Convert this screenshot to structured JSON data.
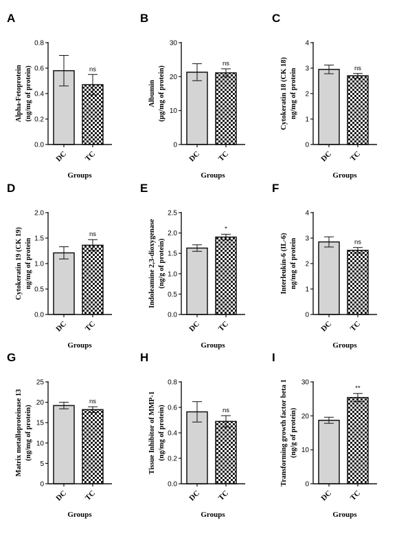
{
  "chart_data": [
    {
      "letter": "A",
      "type": "bar",
      "categories": [
        "DC",
        "TC"
      ],
      "ylabel": [
        "Alpha-Fetoprotein",
        "(ng/mg of protein)"
      ],
      "xlabel": "Groups",
      "ylim": [
        0,
        0.8
      ],
      "yticks": [
        "0.0",
        "0.2",
        "0.4",
        "0.6",
        "0.8"
      ],
      "values": [
        0.58,
        0.47
      ],
      "errors": [
        0.12,
        0.08
      ],
      "annotations": [
        "",
        "ns"
      ]
    },
    {
      "letter": "B",
      "type": "bar",
      "categories": [
        "DC",
        "TC"
      ],
      "ylabel": [
        "Albumin",
        "(µg/mg of protein)"
      ],
      "xlabel": "Groups",
      "ylim": [
        0,
        30
      ],
      "yticks": [
        "0",
        "10",
        "20",
        "30"
      ],
      "values": [
        21.3,
        21.1
      ],
      "errors": [
        2.5,
        1.2
      ],
      "annotations": [
        "",
        "ns"
      ]
    },
    {
      "letter": "C",
      "type": "bar",
      "categories": [
        "DC",
        "TC"
      ],
      "ylabel": [
        "Cytokeratin 18 (CK 18)",
        "ng/mg of protein"
      ],
      "xlabel": "Groups",
      "ylim": [
        0,
        4
      ],
      "yticks": [
        "0",
        "1",
        "2",
        "3",
        "4"
      ],
      "values": [
        2.95,
        2.7
      ],
      "errors": [
        0.17,
        0.09
      ],
      "annotations": [
        "",
        "ns"
      ]
    },
    {
      "letter": "D",
      "type": "bar",
      "categories": [
        "DC",
        "TC"
      ],
      "ylabel": [
        "Cytokeratin 19 (CK 19)",
        "ng/mg of protein"
      ],
      "xlabel": "Groups",
      "ylim": [
        0,
        2.0
      ],
      "yticks": [
        "0.0",
        "0.5",
        "1.0",
        "1.5",
        "2.0"
      ],
      "values": [
        1.21,
        1.36
      ],
      "errors": [
        0.12,
        0.11
      ],
      "annotations": [
        "",
        "ns"
      ]
    },
    {
      "letter": "E",
      "type": "bar",
      "categories": [
        "DC",
        "TC"
      ],
      "ylabel": [
        "Indoleamine 2,3-dioxygenase",
        "(ng/g of protein)"
      ],
      "xlabel": "Groups",
      "ylim": [
        0,
        2.5
      ],
      "yticks": [
        "0.0",
        "0.5",
        "1.0",
        "1.5",
        "2.0",
        "2.5"
      ],
      "values": [
        1.63,
        1.9
      ],
      "errors": [
        0.08,
        0.07
      ],
      "annotations": [
        "",
        "*"
      ]
    },
    {
      "letter": "F",
      "type": "bar",
      "categories": [
        "DC",
        "TC"
      ],
      "ylabel": [
        "Interleukin-6 (IL-6)",
        "ng/mg of protein"
      ],
      "xlabel": "Groups",
      "ylim": [
        0,
        4
      ],
      "yticks": [
        "0",
        "1",
        "2",
        "3",
        "4"
      ],
      "values": [
        2.85,
        2.52
      ],
      "errors": [
        0.2,
        0.11
      ],
      "annotations": [
        "",
        "ns"
      ]
    },
    {
      "letter": "G",
      "type": "bar",
      "categories": [
        "DC",
        "TC"
      ],
      "ylabel": [
        "Matrix metalloproteinase 13",
        "(ng/mg of protein)"
      ],
      "xlabel": "Groups",
      "ylim": [
        0,
        25
      ],
      "yticks": [
        "0",
        "5",
        "10",
        "15",
        "20",
        "25"
      ],
      "values": [
        19.2,
        18.2
      ],
      "errors": [
        0.8,
        0.7
      ],
      "annotations": [
        "",
        "ns"
      ]
    },
    {
      "letter": "H",
      "type": "bar",
      "categories": [
        "DC",
        "TC"
      ],
      "ylabel": [
        "Tissue Inhibitor of MMP-1",
        "(ng/mg of protein)"
      ],
      "xlabel": "Groups",
      "ylim": [
        0,
        0.8
      ],
      "yticks": [
        "0.0",
        "0.2",
        "0.4",
        "0.6",
        "0.8"
      ],
      "values": [
        0.565,
        0.49
      ],
      "errors": [
        0.08,
        0.045
      ],
      "annotations": [
        "",
        "ns"
      ]
    },
    {
      "letter": "I",
      "type": "bar",
      "categories": [
        "DC",
        "TC"
      ],
      "ylabel": [
        "Transforming growth factor beta 1",
        "(ng/g of protein)"
      ],
      "xlabel": "Groups",
      "ylim": [
        0,
        30
      ],
      "yticks": [
        "0",
        "10",
        "20",
        "30"
      ],
      "values": [
        18.7,
        25.4
      ],
      "errors": [
        0.9,
        1.2
      ],
      "annotations": [
        "",
        "**"
      ]
    }
  ],
  "colors": {
    "dc_fill": "#d4d4d4",
    "tc_check_dark": "#1a1a1a",
    "tc_check_light": "#ffffff",
    "stroke": "#111111"
  }
}
